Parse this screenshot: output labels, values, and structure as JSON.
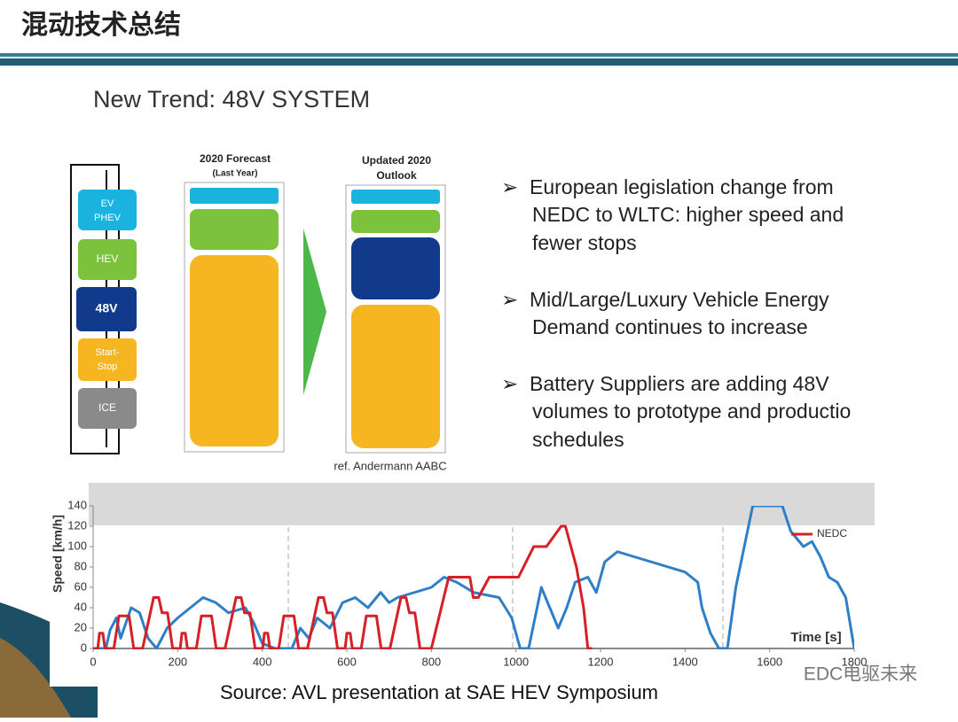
{
  "header": {
    "title": "混动技术总结"
  },
  "slide": {
    "title": "New Trend: 48V SYSTEM",
    "segments": [
      [
        "EV",
        "PHEV"
      ],
      [
        "HEV"
      ],
      [
        "48V"
      ],
      [
        "Start-",
        "Stop"
      ],
      [
        "ICE"
      ]
    ],
    "forecast_heading": [
      "2020 Forecast",
      "(Last Year)"
    ],
    "outlook_heading": [
      "Updated 2020",
      "Outlook"
    ],
    "reference": "ref. Andermann AABC",
    "bullets": [
      [
        "European legislation change from",
        "NEDC to WLTC: higher speed and",
        "fewer stops"
      ],
      [
        "Mid/Large/Luxury Vehicle Energy",
        "Demand continues to increase"
      ],
      [
        "Battery Suppliers are adding 48V",
        "volumes to prototype and productio",
        "schedules"
      ]
    ],
    "source": "Source: AVL presentation at SAE HEV Symposium",
    "watermark": "EDC电驱未来"
  },
  "chart_data": {
    "type": "line",
    "y_label": "Speed [km/h]",
    "x_label": "Time [s]",
    "xlim": [
      0,
      1800
    ],
    "ylim": [
      0,
      140
    ],
    "xticks": [
      0,
      200,
      400,
      600,
      800,
      1000,
      1200,
      1400,
      1600,
      1800
    ],
    "yticks": [
      0,
      20,
      40,
      60,
      80,
      100,
      120,
      140
    ],
    "legend": "upper right",
    "series": [
      {
        "color": "#2f7fc8",
        "x": [
          0,
          30,
          40,
          55,
          65,
          90,
          110,
          130,
          150,
          175,
          200,
          230,
          260,
          290,
          320,
          360,
          380,
          400,
          430,
          470,
          490,
          510,
          530,
          560,
          590,
          620,
          650,
          680,
          700,
          720,
          760,
          800,
          830,
          860,
          900,
          960,
          990,
          1010,
          1030,
          1060,
          1080,
          1100,
          1120,
          1140,
          1170,
          1190,
          1210,
          1240,
          1280,
          1320,
          1360,
          1400,
          1430,
          1440,
          1460,
          1480,
          1500,
          1520,
          1540,
          1560,
          1600,
          1630,
          1650,
          1680,
          1700,
          1720,
          1740,
          1760,
          1780,
          1800
        ],
        "values": [
          0,
          0,
          18,
          30,
          10,
          40,
          35,
          10,
          0,
          20,
          30,
          40,
          50,
          45,
          35,
          40,
          25,
          5,
          0,
          0,
          20,
          10,
          30,
          20,
          45,
          50,
          40,
          55,
          45,
          50,
          55,
          60,
          70,
          65,
          55,
          50,
          30,
          0,
          0,
          60,
          40,
          20,
          40,
          65,
          70,
          55,
          85,
          95,
          90,
          85,
          80,
          75,
          65,
          40,
          15,
          0,
          0,
          60,
          100,
          140,
          140,
          140,
          115,
          100,
          105,
          90,
          70,
          65,
          50,
          0
        ]
      },
      {
        "name": "NEDC",
        "color": "#d42026",
        "x": [
          0,
          11,
          15,
          23,
          28,
          49,
          61,
          85,
          96,
          117,
          143,
          155,
          163,
          176,
          188,
          195,
          206,
          210,
          218,
          223,
          244,
          256,
          280,
          291,
          312,
          338,
          350,
          358,
          371,
          383,
          390,
          401,
          405,
          413,
          418,
          439,
          451,
          475,
          486,
          507,
          533,
          545,
          553,
          566,
          578,
          585,
          596,
          600,
          608,
          613,
          634,
          646,
          670,
          681,
          702,
          728,
          740,
          748,
          761,
          773,
          780,
          800,
          841,
          891,
          899,
          911,
          937,
          1006,
          1042,
          1072,
          1107,
          1117,
          1143,
          1160,
          1170,
          1180
        ],
        "values": [
          0,
          0,
          15,
          15,
          0,
          0,
          32,
          32,
          0,
          0,
          50,
          50,
          35,
          35,
          0,
          0,
          0,
          15,
          15,
          0,
          0,
          32,
          32,
          0,
          0,
          50,
          50,
          35,
          35,
          0,
          0,
          0,
          15,
          15,
          0,
          0,
          32,
          32,
          0,
          0,
          50,
          50,
          35,
          35,
          0,
          0,
          0,
          15,
          15,
          0,
          0,
          32,
          32,
          0,
          0,
          50,
          50,
          35,
          35,
          0,
          0,
          0,
          70,
          70,
          50,
          50,
          70,
          70,
          100,
          100,
          120,
          120,
          80,
          40,
          0,
          0
        ]
      }
    ]
  }
}
